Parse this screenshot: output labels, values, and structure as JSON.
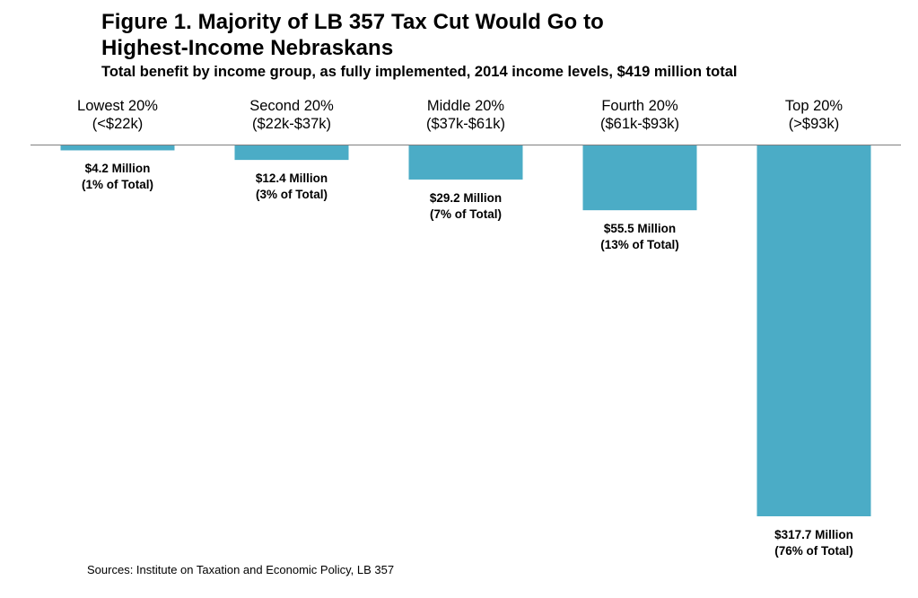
{
  "chart_data": {
    "type": "bar",
    "title_line1": "Figure 1. Majority of LB 357 Tax Cut Would Go to",
    "title_line2": "Highest-Income Nebraskans",
    "subtitle": "Total benefit by income group, as fully implemented, 2014 income levels, $419 million total",
    "categories": [
      {
        "name": "Lowest 20%",
        "range": "(<$22k)"
      },
      {
        "name": "Second 20%",
        "range": "($22k-$37k)"
      },
      {
        "name": "Middle 20%",
        "range": "($37k-$61k)"
      },
      {
        "name": "Fourth 20%",
        "range": "($61k-$93k)"
      },
      {
        "name": "Top 20%",
        "range": "(>$93k)"
      }
    ],
    "values": [
      4.2,
      12.4,
      29.2,
      55.5,
      317.7
    ],
    "value_labels": [
      "$4.2 Million",
      "$12.4 Million",
      "$29.2 Million",
      "$55.5 Million",
      "$317.7 Million"
    ],
    "share_labels": [
      "(1% of Total)",
      "(3% of Total)",
      "(7% of Total)",
      "(13% of Total)",
      "(76% of Total)"
    ],
    "unit": "Million $",
    "orientation": "downward",
    "bar_color": "#4BACC6",
    "grid": false,
    "legend": "none"
  },
  "source": "Sources: Institute  on Taxation and Economic Policy, LB 357"
}
